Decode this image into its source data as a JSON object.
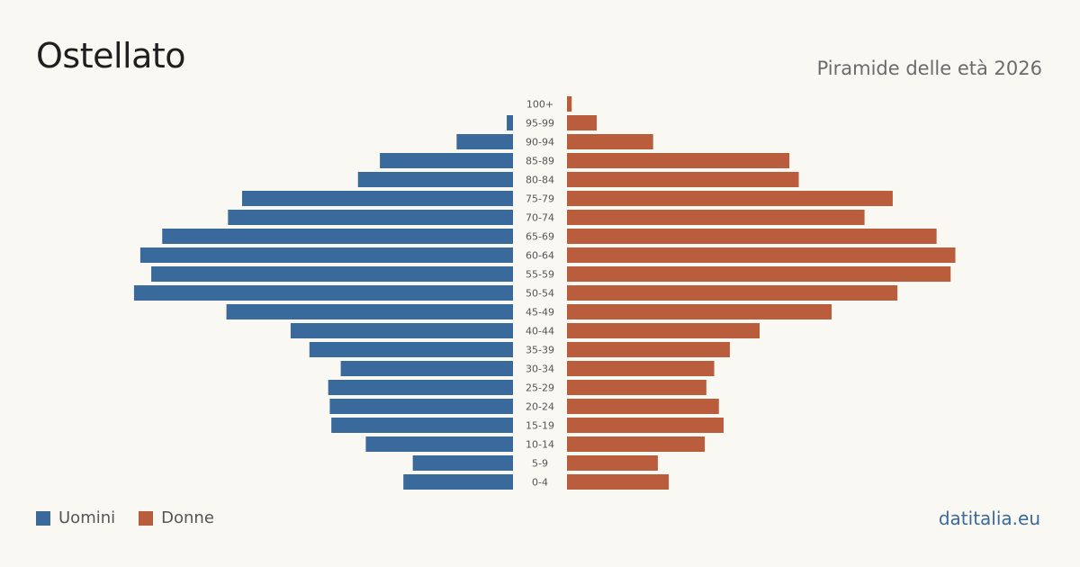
{
  "header": {
    "title": "Ostellato",
    "subtitle": "Piramide delle età 2026"
  },
  "legend": {
    "men_label": "Uomini",
    "women_label": "Donne"
  },
  "brand": "datitalia.eu",
  "colors": {
    "men": "#3a6a9b",
    "women": "#b95d3c",
    "label": "#555555"
  },
  "chart_data": {
    "type": "bar",
    "orientation": "horizontal-pyramid",
    "categories": [
      "100+",
      "95-99",
      "90-94",
      "85-89",
      "80-84",
      "75-79",
      "70-74",
      "65-69",
      "60-64",
      "55-59",
      "50-54",
      "45-49",
      "40-44",
      "35-39",
      "30-34",
      "25-29",
      "20-24",
      "15-19",
      "10-14",
      "5-9",
      "0-4"
    ],
    "series": [
      {
        "name": "Uomini",
        "side": "left",
        "values": [
          0,
          4,
          36,
          85,
          99,
          173,
          182,
          224,
          238,
          231,
          242,
          183,
          142,
          130,
          110,
          118,
          117,
          116,
          94,
          64,
          70
        ]
      },
      {
        "name": "Donne",
        "side": "right",
        "values": [
          3,
          19,
          55,
          142,
          148,
          208,
          190,
          236,
          248,
          245,
          211,
          169,
          123,
          104,
          94,
          89,
          97,
          100,
          88,
          58,
          65
        ]
      }
    ]
  }
}
